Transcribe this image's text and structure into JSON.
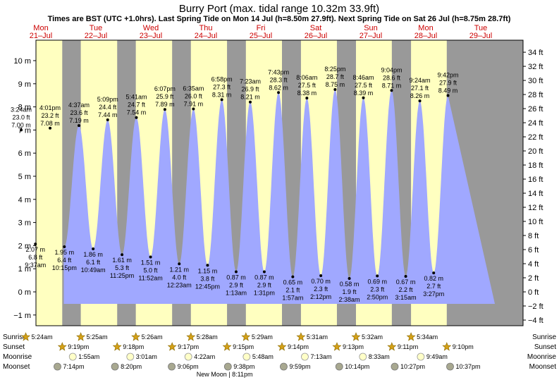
{
  "chart_data": {
    "type": "area",
    "title": "Burry Port (max. tidal range 10.32m 33.9ft)",
    "subtitle": "Times are BST (UTC +1.0hrs). Last Spring Tide on Mon 14 Jul (h=8.50m 27.9ft). Next Spring Tide on Sat 26 Jul (h=8.75m 28.7ft)",
    "days": [
      {
        "dow": "Mon",
        "date": "21–Jul"
      },
      {
        "dow": "Tue",
        "date": "22–Jul"
      },
      {
        "dow": "Wed",
        "date": "23–Jul"
      },
      {
        "dow": "Thu",
        "date": "24–Jul"
      },
      {
        "dow": "Fri",
        "date": "25–Jul"
      },
      {
        "dow": "Sat",
        "date": "26–Jul"
      },
      {
        "dow": "Sun",
        "date": "27–Jul"
      },
      {
        "dow": "Mon",
        "date": "28–Jul"
      },
      {
        "dow": "Tue",
        "date": "29–Jul"
      }
    ],
    "y_left": {
      "unit": "m",
      "ylim": [
        -1.5,
        10.8
      ],
      "ticks": [
        -1,
        0,
        1,
        2,
        3,
        4,
        5,
        6,
        7,
        8,
        9,
        10
      ],
      "tick_labels": [
        "−1 m",
        "0 m",
        "1 m",
        "2 m",
        "3 m",
        "4 m",
        "5 m",
        "6 m",
        "7 m",
        "8 m",
        "9 m",
        "10 m"
      ]
    },
    "y_right": {
      "unit": "ft",
      "ticks": [
        -4,
        -2,
        0,
        2,
        4,
        6,
        8,
        10,
        12,
        14,
        16,
        18,
        20,
        22,
        24,
        26,
        28,
        30,
        32,
        34
      ],
      "tick_labels": [
        "−4 ft",
        "−2 ft",
        "0 ft",
        "2 ft",
        "4 ft",
        "6 ft",
        "8 ft",
        "10 ft",
        "12 ft",
        "14 ft",
        "16 ft",
        "18 ft",
        "20 ft",
        "22 ft",
        "24 ft",
        "26 ft",
        "28 ft",
        "30 ft",
        "32 ft",
        "34 ft"
      ]
    },
    "tides": [
      {
        "type": "high",
        "day": 0,
        "time": "3:24 am",
        "h": 7.0,
        "ft": "23.0 ft",
        "m": "7.00 m"
      },
      {
        "type": "low",
        "day": 0,
        "time": "9:37 am",
        "h": 2.07,
        "ft": "6.8 ft",
        "m": "2.07 m"
      },
      {
        "type": "high",
        "day": 0,
        "time": "4:01 pm",
        "h": 7.08,
        "ft": "23.2 ft",
        "m": "7.08 m"
      },
      {
        "type": "low",
        "day": 0,
        "time": "10:15 pm",
        "h": 1.95,
        "ft": "6.4 ft",
        "m": "1.95 m"
      },
      {
        "type": "high",
        "day": 1,
        "time": "4:37 am",
        "h": 7.19,
        "ft": "23.6 ft",
        "m": "7.19 m"
      },
      {
        "type": "low",
        "day": 1,
        "time": "10:49 am",
        "h": 1.86,
        "ft": "6.1 ft",
        "m": "1.86 m"
      },
      {
        "type": "high",
        "day": 1,
        "time": "5:09 pm",
        "h": 7.44,
        "ft": "24.4 ft",
        "m": "7.44 m"
      },
      {
        "type": "low",
        "day": 1,
        "time": "11:25 pm",
        "h": 1.61,
        "ft": "5.3 ft",
        "m": "1.61 m"
      },
      {
        "type": "high",
        "day": 2,
        "time": "5:41 am",
        "h": 7.54,
        "ft": "24.7 ft",
        "m": "7.54 m"
      },
      {
        "type": "low",
        "day": 2,
        "time": "11:52 am",
        "h": 1.51,
        "ft": "5.0 ft",
        "m": "1.51 m"
      },
      {
        "type": "high",
        "day": 2,
        "time": "6:07 pm",
        "h": 7.89,
        "ft": "25.9 ft",
        "m": "7.89 m"
      },
      {
        "type": "low",
        "day": 3,
        "time": "12:23 am",
        "h": 1.21,
        "ft": "4.0 ft",
        "m": "1.21 m"
      },
      {
        "type": "high",
        "day": 3,
        "time": "6:35 am",
        "h": 7.91,
        "ft": "26.0 ft",
        "m": "7.91 m"
      },
      {
        "type": "low",
        "day": 3,
        "time": "12:45 pm",
        "h": 1.15,
        "ft": "3.8 ft",
        "m": "1.15 m"
      },
      {
        "type": "high",
        "day": 3,
        "time": "6:58 pm",
        "h": 8.31,
        "ft": "27.3 ft",
        "m": "8.31 m"
      },
      {
        "type": "low",
        "day": 4,
        "time": "1:13 am",
        "h": 0.87,
        "ft": "2.9 ft",
        "m": "0.87 m"
      },
      {
        "type": "high",
        "day": 4,
        "time": "7:23 am",
        "h": 8.21,
        "ft": "26.9 ft",
        "m": "8.21 m"
      },
      {
        "type": "low",
        "day": 4,
        "time": "1:31 pm",
        "h": 0.87,
        "ft": "2.9 ft",
        "m": "0.87 m"
      },
      {
        "type": "high",
        "day": 4,
        "time": "7:43 pm",
        "h": 8.62,
        "ft": "28.3 ft",
        "m": "8.62 m"
      },
      {
        "type": "low",
        "day": 5,
        "time": "1:57 am",
        "h": 0.65,
        "ft": "2.1 ft",
        "m": "0.65 m"
      },
      {
        "type": "high",
        "day": 5,
        "time": "8:06 am",
        "h": 8.38,
        "ft": "27.5 ft",
        "m": "8.38 m"
      },
      {
        "type": "low",
        "day": 5,
        "time": "2:12 pm",
        "h": 0.7,
        "ft": "2.3 ft",
        "m": "0.70 m"
      },
      {
        "type": "high",
        "day": 5,
        "time": "8:25 pm",
        "h": 8.75,
        "ft": "28.7 ft",
        "m": "8.75 m"
      },
      {
        "type": "low",
        "day": 6,
        "time": "2:38 am",
        "h": 0.58,
        "ft": "1.9 ft",
        "m": "0.58 m"
      },
      {
        "type": "high",
        "day": 6,
        "time": "8:46 am",
        "h": 8.39,
        "ft": "27.5 ft",
        "m": "8.39 m"
      },
      {
        "type": "low",
        "day": 6,
        "time": "2:50 pm",
        "h": 0.69,
        "ft": "2.3 ft",
        "m": "0.69 m"
      },
      {
        "type": "high",
        "day": 6,
        "time": "9:04 pm",
        "h": 8.71,
        "ft": "28.6 ft",
        "m": "8.71 m"
      },
      {
        "type": "low",
        "day": 7,
        "time": "3:15 am",
        "h": 0.67,
        "ft": "2.2 ft",
        "m": "0.67 m"
      },
      {
        "type": "high",
        "day": 7,
        "time": "9:24 am",
        "h": 8.26,
        "ft": "27.1 ft",
        "m": "8.26 m"
      },
      {
        "type": "low",
        "day": 7,
        "time": "3:27 pm",
        "h": 0.82,
        "ft": "2.7 ft",
        "m": "0.82 m"
      },
      {
        "type": "high",
        "day": 7,
        "time": "9:42 pm",
        "h": 8.49,
        "ft": "27.9 ft",
        "m": "8.49 m"
      }
    ],
    "rows": {
      "sunrise_label": "Sunrise",
      "sunset_label": "Sunset",
      "moonrise_label": "Moonrise",
      "moonset_label": "Moonset"
    },
    "sunrise": [
      {
        "day": 0,
        "time": "5:24am"
      },
      {
        "day": 1,
        "time": "5:25am"
      },
      {
        "day": 2,
        "time": "5:26am"
      },
      {
        "day": 3,
        "time": "5:28am"
      },
      {
        "day": 4,
        "time": "5:29am"
      },
      {
        "day": 5,
        "time": "5:31am"
      },
      {
        "day": 6,
        "time": "5:32am"
      },
      {
        "day": 7,
        "time": "5:34am"
      }
    ],
    "sunset": [
      {
        "day": 0,
        "time": "9:19pm"
      },
      {
        "day": 1,
        "time": "9:18pm"
      },
      {
        "day": 2,
        "time": "9:17pm"
      },
      {
        "day": 3,
        "time": "9:15pm"
      },
      {
        "day": 4,
        "time": "9:14pm"
      },
      {
        "day": 5,
        "time": "9:13pm"
      },
      {
        "day": 6,
        "time": "9:11pm"
      },
      {
        "day": 7,
        "time": "9:10pm"
      }
    ],
    "moonrise": [
      {
        "day": 1,
        "time": "1:55am"
      },
      {
        "day": 2,
        "time": "3:01am"
      },
      {
        "day": 3,
        "time": "4:22am"
      },
      {
        "day": 4,
        "time": "5:48am"
      },
      {
        "day": 5,
        "time": "7:13am"
      },
      {
        "day": 6,
        "time": "8:33am"
      },
      {
        "day": 7,
        "time": "9:49am"
      }
    ],
    "moonset": [
      {
        "day": 0,
        "time": "7:14pm"
      },
      {
        "day": 1,
        "time": "8:20pm"
      },
      {
        "day": 2,
        "time": "9:06pm"
      },
      {
        "day": 3,
        "time": "9:38pm"
      },
      {
        "day": 4,
        "time": "9:59pm"
      },
      {
        "day": 5,
        "time": "10:14pm"
      },
      {
        "day": 6,
        "time": "10:27pm"
      },
      {
        "day": 7,
        "time": "10:37pm"
      }
    ],
    "moon_phase": {
      "label": "New Moon",
      "time": "8:11pm",
      "day": 3
    },
    "colors": {
      "night": "#999999",
      "day": "#ffffc0",
      "water": "#a0a8ff",
      "day_label": "#cc0000",
      "sun": "#d4a017",
      "moon": "#ffffc8",
      "moonset": "#a8a890"
    }
  }
}
